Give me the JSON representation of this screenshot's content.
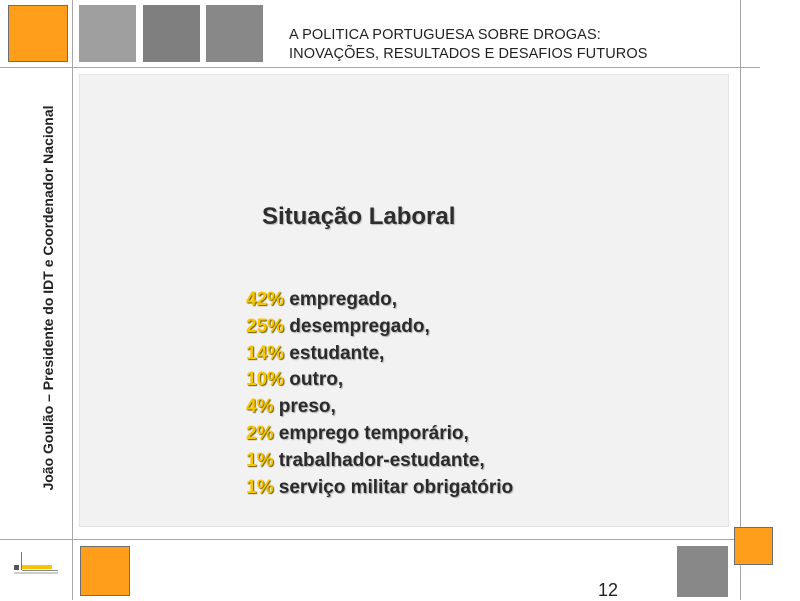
{
  "header": {
    "title_line1": "A POLITICA PORTUGUESA SOBRE DROGAS:",
    "title_line2": "INOVAÇÕES, RESULTADOS E DESAFIOS FUTUROS"
  },
  "sidebar": {
    "author": "João Goulão – Presidente do IDT e Coordenador Nacional"
  },
  "slide": {
    "heading": "Situação Laboral",
    "items": [
      {
        "pct": "42%",
        "label": " empregado,"
      },
      {
        "pct": "25%",
        "label": " desempregado,"
      },
      {
        "pct": "14%",
        "label": " estudante,"
      },
      {
        "pct": "10%",
        "label": " outro,"
      },
      {
        "pct": "4%",
        "label": " preso,"
      },
      {
        "pct": "2%",
        "label": " emprego temporário,"
      },
      {
        "pct": "1%",
        "label": " trabalhador-estudante,"
      },
      {
        "pct": "1%",
        "label": " serviço militar obrigatório"
      }
    ]
  },
  "footer": {
    "page_number": "12"
  },
  "colors": {
    "accent_orange": "#ff9e1b",
    "percent_yellow": "#f7c600",
    "panel_gray": "#f2f2f2",
    "tile_gray": "#8c8c8c"
  }
}
